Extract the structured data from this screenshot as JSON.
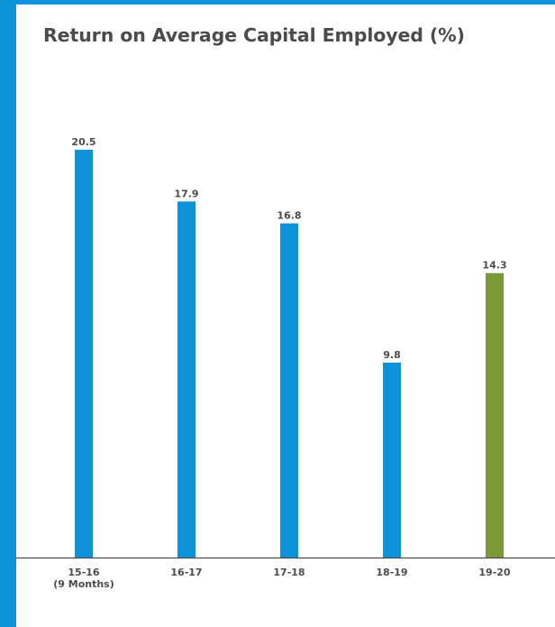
{
  "chart_data": {
    "type": "bar",
    "title": "Return on Average Capital Employed (%)",
    "categories": [
      [
        "15-16",
        "(9 Months)"
      ],
      [
        "16-17"
      ],
      [
        "17-18"
      ],
      [
        "18-19"
      ],
      [
        "19-20"
      ]
    ],
    "values": [
      20.5,
      17.9,
      16.8,
      9.8,
      14.3
    ],
    "data_labels": [
      "20.5",
      "17.9",
      "16.8",
      "9.8",
      "14.3"
    ],
    "bar_colors": [
      "#0d93d9",
      "#0d93d9",
      "#0d93d9",
      "#0d93d9",
      "#7a9a3a"
    ],
    "xlabel": "",
    "ylabel": "",
    "ylim": [
      0,
      20.5
    ],
    "grid": false,
    "legend": "none"
  },
  "colors": {
    "frame": "#0d93d9",
    "bar_primary": "#0d93d9",
    "bar_highlight": "#7a9a3a",
    "axis": "#4b4b4d",
    "text": "#4b4b4d"
  }
}
